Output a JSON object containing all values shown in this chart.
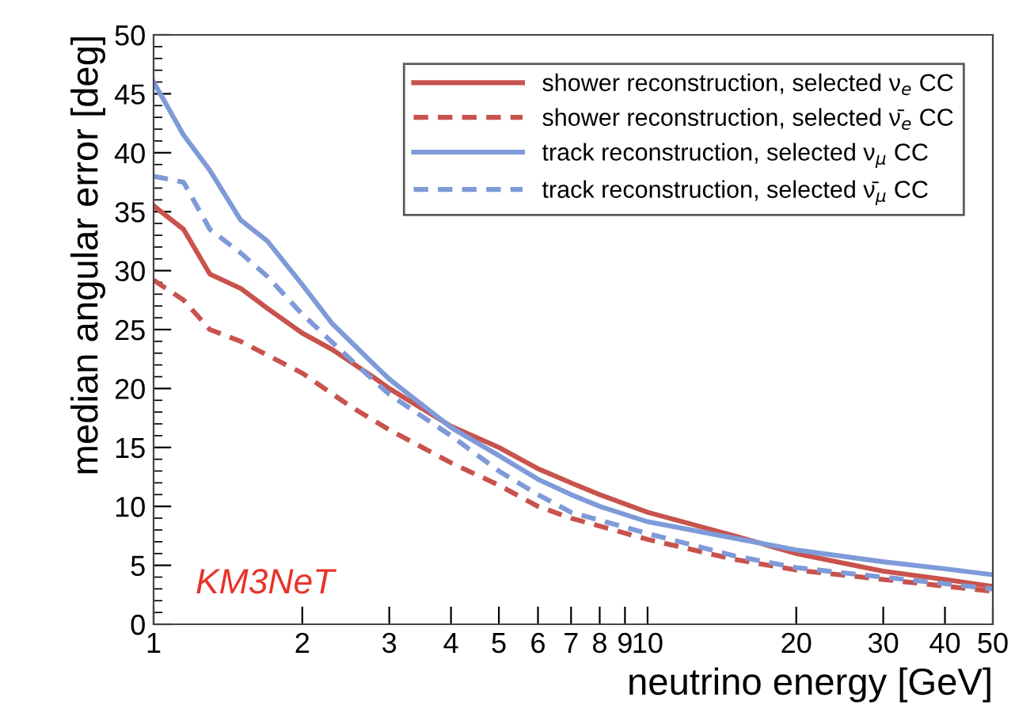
{
  "chart_data": {
    "type": "line",
    "xlabel": "neutrino energy [GeV]",
    "ylabel": "median angular error [deg]",
    "log": "x",
    "xlim": [
      1,
      50
    ],
    "ylim": [
      0,
      50
    ],
    "xticks": [
      1,
      2,
      3,
      4,
      5,
      6,
      7,
      8,
      9,
      10,
      20,
      30,
      40,
      50
    ],
    "yticks": [
      0,
      5,
      10,
      15,
      20,
      25,
      30,
      35,
      40,
      45,
      50
    ],
    "grid": false,
    "legend": "top right",
    "marker": "none",
    "series": [
      {
        "name": "shower reconstruction, selected ν$_{e}$ CC",
        "color": "#c8524c",
        "line_style": "solid",
        "x": [
          1,
          1.15,
          1.3,
          1.5,
          1.7,
          2,
          2.3,
          2.8,
          3,
          4,
          5,
          6,
          7,
          8,
          10,
          15,
          20,
          30,
          40,
          50
        ],
        "values": [
          35.5,
          33.5,
          29.7,
          28.5,
          26.8,
          24.7,
          23.3,
          20.9,
          20,
          16.8,
          15,
          13.2,
          12,
          11,
          9.5,
          7.5,
          6,
          4.5,
          3.8,
          3.2
        ]
      },
      {
        "name": "shower reconstruction, selected ν̄$_{e}$ CC",
        "color": "#c8524c",
        "line_style": "dashed",
        "x": [
          1,
          1.15,
          1.3,
          1.5,
          2,
          2.5,
          3,
          4,
          5,
          6,
          7,
          10,
          15,
          20,
          30,
          50
        ],
        "values": [
          29.2,
          27.5,
          25,
          24,
          21.3,
          18.5,
          16.5,
          13.7,
          11.8,
          10,
          9,
          7.2,
          5.5,
          4.6,
          3.8,
          2.8
        ]
      },
      {
        "name": "track reconstruction, selected ν$_{μ}$ CC",
        "color": "#7f9ad8",
        "line_style": "solid",
        "x": [
          1,
          1.15,
          1.3,
          1.5,
          1.7,
          2,
          2.3,
          2.8,
          3,
          4,
          5,
          6,
          7,
          8,
          10,
          15,
          20,
          30,
          40,
          50
        ],
        "values": [
          46,
          41.5,
          38.5,
          34.3,
          32.5,
          28.8,
          25.5,
          22,
          20.8,
          16.7,
          14.3,
          12.3,
          11,
          10,
          8.7,
          7.3,
          6.3,
          5.3,
          4.7,
          4.2
        ]
      },
      {
        "name": "track reconstruction, selected ν̄$_{μ}$ CC",
        "color": "#7f9ad8",
        "line_style": "dashed",
        "x": [
          1,
          1.15,
          1.3,
          1.5,
          1.7,
          2,
          2.5,
          3,
          4,
          5,
          6,
          7,
          10,
          15,
          20,
          30,
          50
        ],
        "values": [
          38,
          37.5,
          33.5,
          31.5,
          29.5,
          26.3,
          22.5,
          19.5,
          16,
          13,
          11,
          9.5,
          7.7,
          5.8,
          4.8,
          4,
          3
        ]
      }
    ],
    "annotations": [
      "KM3NeT"
    ]
  }
}
